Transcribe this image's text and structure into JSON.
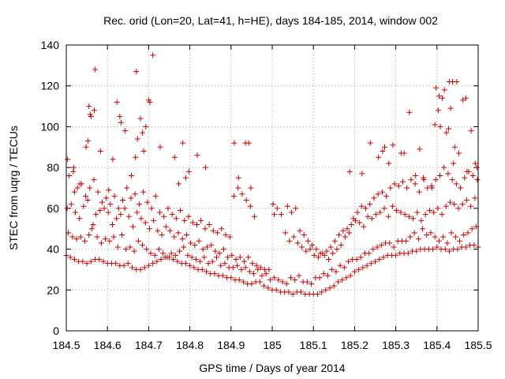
{
  "chart_data": {
    "type": "scatter",
    "title": "Rec. orid (Lon=20, Lat=41, h=HE), days 184-185, 2014, window 002",
    "xlabel": "GPS time / Days of year 2014",
    "ylabel": "STEC from uqrg / TECUs",
    "xlim": [
      184.5,
      185.5
    ],
    "ylim": [
      0,
      140
    ],
    "xticks": [
      "184.5",
      "184.6",
      "184.7",
      "184.8",
      "184.9",
      "185",
      "185.1",
      "185.2",
      "185.3",
      "185.4",
      "185.5"
    ],
    "yticks": [
      "0",
      "20",
      "40",
      "60",
      "80",
      "100",
      "120",
      "140"
    ],
    "grid": true,
    "marker": "+",
    "color": "#cc0000",
    "series": [
      {
        "x": [
          184.5,
          184.51,
          184.52,
          184.53,
          184.54,
          184.55,
          184.56,
          184.57,
          184.58,
          184.59,
          184.6,
          184.61,
          184.62,
          184.63,
          184.64,
          184.65,
          184.66,
          184.67,
          184.68,
          184.69,
          184.7,
          184.71,
          184.72,
          184.73,
          184.74,
          184.75,
          184.76,
          184.77,
          184.78,
          184.79,
          184.8,
          184.81,
          184.82,
          184.83,
          184.84,
          184.85,
          184.86,
          184.87,
          184.88,
          184.89,
          184.9,
          184.91,
          184.92,
          184.93,
          184.94,
          184.95,
          184.96,
          184.97,
          184.98,
          184.99,
          185.0,
          185.01,
          185.02,
          185.03,
          185.04,
          185.05,
          185.06,
          185.07,
          185.08,
          185.09,
          185.1,
          185.11,
          185.12,
          185.13,
          185.14,
          185.15,
          185.16,
          185.17,
          185.18,
          185.19,
          185.2,
          185.21,
          185.22,
          185.23,
          185.24,
          185.25,
          185.26,
          185.27,
          185.28,
          185.29,
          185.3,
          185.31,
          185.32,
          185.33,
          185.34,
          185.35,
          185.36,
          185.37,
          185.38,
          185.39,
          185.4,
          185.41,
          185.42,
          185.43,
          185.44,
          185.45,
          185.46,
          185.47,
          185.48,
          185.49,
          185.5
        ],
        "y": [
          37,
          36,
          35,
          34,
          34,
          33,
          34,
          35,
          35,
          34,
          33,
          33,
          33,
          32,
          32,
          33,
          31,
          30,
          30,
          31,
          32,
          33,
          34,
          35,
          36,
          36,
          35,
          34,
          33,
          33,
          32,
          31,
          30,
          30,
          29,
          28,
          28,
          27,
          27,
          26,
          26,
          25,
          25,
          24,
          23,
          23,
          24,
          24,
          22,
          21,
          20,
          20,
          19,
          19,
          19,
          18,
          19,
          19,
          18,
          18,
          18,
          18,
          19,
          20,
          21,
          22,
          24,
          25,
          26,
          27,
          29,
          30,
          31,
          32,
          33,
          34,
          35,
          36,
          37,
          37,
          37,
          38,
          38,
          38,
          39,
          39,
          40,
          40,
          40,
          40,
          41,
          40,
          40,
          39,
          40,
          40,
          41,
          41,
          42,
          42,
          41
        ]
      },
      {
        "x": [
          184.505,
          184.515,
          184.525,
          184.535,
          184.545,
          184.555,
          184.565,
          184.575,
          184.585,
          184.595,
          184.605,
          184.615,
          184.625,
          184.635,
          184.645,
          184.655,
          184.665,
          184.675,
          184.685,
          184.695,
          184.705,
          184.715,
          184.725,
          184.735,
          184.745,
          184.755,
          184.765,
          184.775,
          184.785,
          184.795,
          184.805,
          184.815,
          184.825,
          184.835,
          184.845,
          184.855,
          184.865,
          184.875,
          184.885,
          184.895,
          184.905,
          184.915,
          184.925,
          184.935,
          184.945,
          184.955,
          184.965,
          184.975,
          184.985,
          184.995,
          185.005,
          185.015,
          185.025,
          185.035,
          185.045,
          185.055,
          185.065,
          185.075,
          185.085,
          185.095,
          185.105,
          185.115,
          185.125,
          185.135,
          185.145,
          185.155,
          185.165,
          185.175,
          185.185,
          185.195,
          185.205,
          185.215,
          185.225,
          185.235,
          185.245,
          185.255,
          185.265,
          185.275,
          185.285,
          185.295,
          185.305,
          185.315,
          185.325,
          185.335,
          185.345,
          185.355,
          185.365,
          185.375,
          185.385,
          185.395,
          185.405,
          185.415,
          185.425,
          185.435,
          185.445,
          185.455,
          185.465,
          185.475,
          185.485,
          185.495
        ],
        "y": [
          48,
          46,
          45,
          46,
          44,
          47,
          52,
          46,
          43,
          45,
          44,
          46,
          41,
          47,
          40,
          41,
          39,
          44,
          42,
          40,
          38,
          37,
          40,
          38,
          36,
          38,
          37,
          39,
          41,
          37,
          36,
          35,
          34,
          36,
          33,
          34,
          36,
          32,
          33,
          31,
          31,
          32,
          30,
          31,
          29,
          28,
          30,
          27,
          28,
          25,
          26,
          25,
          24,
          23,
          26,
          25,
          27,
          24,
          24,
          23,
          26,
          26,
          28,
          27,
          30,
          29,
          32,
          31,
          34,
          35,
          35,
          36,
          38,
          38,
          40,
          41,
          42,
          43,
          43,
          41,
          44,
          44,
          44,
          46,
          48,
          45,
          50,
          47,
          48,
          46,
          44,
          46,
          43,
          48,
          46,
          44,
          47,
          48,
          50,
          51
        ]
      },
      {
        "x": [
          184.502,
          184.512,
          184.522,
          184.532,
          184.542,
          184.552,
          184.562,
          184.572,
          184.582,
          184.592,
          184.602,
          184.612,
          184.622,
          184.632,
          184.642,
          184.652,
          184.662,
          184.672,
          184.682,
          184.692,
          184.702,
          184.712,
          184.722,
          184.732,
          184.742,
          184.752,
          184.762,
          184.772,
          184.782,
          184.792,
          184.802,
          184.812,
          184.822,
          184.832,
          184.842,
          184.852,
          184.862,
          184.872,
          184.882,
          184.892,
          184.902,
          184.912,
          184.922,
          184.932,
          184.942,
          184.952,
          184.962,
          184.972,
          184.982,
          184.992,
          185.002,
          185.012,
          185.022,
          185.032,
          185.042,
          185.052,
          185.062,
          185.072,
          185.082,
          185.092,
          185.102,
          185.112,
          185.122,
          185.132,
          185.142,
          185.152,
          185.162,
          185.172,
          185.182,
          185.192,
          185.202,
          185.212,
          185.222,
          185.232,
          185.242,
          185.252,
          185.262,
          185.272,
          185.282,
          185.292,
          185.302,
          185.312,
          185.322,
          185.332,
          185.342,
          185.352,
          185.362,
          185.372,
          185.382,
          185.392,
          185.402,
          185.412,
          185.422,
          185.432,
          185.442,
          185.452,
          185.462,
          185.472,
          185.482,
          185.492
        ],
        "y": [
          60,
          62,
          58,
          55,
          61,
          64,
          50,
          57,
          59,
          60,
          58,
          52,
          55,
          57,
          60,
          56,
          51,
          58,
          55,
          53,
          50,
          54,
          49,
          47,
          51,
          49,
          46,
          48,
          45,
          47,
          43,
          42,
          44,
          40,
          41,
          42,
          39,
          38,
          40,
          36,
          37,
          35,
          36,
          34,
          36,
          33,
          32,
          31,
          30,
          30,
          62,
          60,
          57,
          48,
          44,
          46,
          43,
          41,
          39,
          40,
          37,
          36,
          38,
          39,
          41,
          44,
          47,
          49,
          50,
          52,
          54,
          53,
          51,
          56,
          55,
          57,
          58,
          60,
          56,
          61,
          59,
          58,
          57,
          56,
          55,
          58,
          54,
          57,
          59,
          58,
          60,
          57,
          61,
          63,
          62,
          60,
          62,
          64,
          61,
          65
        ]
      },
      {
        "x": [
          184.507,
          184.517,
          184.527,
          184.537,
          184.547,
          184.557,
          184.567,
          184.577,
          184.587,
          184.597,
          184.607,
          184.617,
          184.627,
          184.637,
          184.647,
          184.657,
          184.667,
          184.677,
          184.687,
          184.697,
          184.707,
          184.717,
          184.727,
          184.737,
          184.747,
          184.757,
          184.767,
          184.777,
          184.787,
          184.797,
          184.807,
          184.817,
          184.827,
          184.837,
          184.847,
          184.857,
          184.867,
          184.877,
          184.887,
          184.897,
          184.907,
          184.917,
          184.927,
          184.937,
          184.947,
          184.957,
          185.037,
          185.047,
          185.057,
          185.067,
          185.077,
          185.087,
          185.097,
          185.107,
          185.117,
          185.127,
          185.137,
          185.147,
          185.157,
          185.167,
          185.177,
          185.187,
          185.197,
          185.207,
          185.217,
          185.227,
          185.237,
          185.247,
          185.257,
          185.267,
          185.277,
          185.287,
          185.297,
          185.307,
          185.317,
          185.327,
          185.337,
          185.347,
          185.357,
          185.367,
          185.377,
          185.387,
          185.397,
          185.407,
          185.417,
          185.427,
          185.437,
          185.447,
          185.457,
          185.467,
          185.477,
          185.487,
          185.497
        ],
        "y": [
          76,
          78,
          70,
          72,
          66,
          70,
          74,
          68,
          63,
          65,
          62,
          66,
          60,
          64,
          70,
          65,
          67,
          62,
          68,
          63,
          60,
          66,
          58,
          56,
          60,
          57,
          55,
          59,
          54,
          56,
          53,
          52,
          54,
          50,
          52,
          49,
          48,
          50,
          47,
          46,
          66,
          70,
          67,
          64,
          61,
          56,
          61,
          58,
          60,
          49,
          47,
          44,
          42,
          40,
          38,
          37,
          35,
          38,
          40,
          42,
          46,
          48,
          55,
          58,
          61,
          60,
          62,
          65,
          67,
          68,
          66,
          70,
          72,
          71,
          73,
          70,
          74,
          72,
          68,
          75,
          70,
          71,
          74,
          76,
          80,
          77,
          74,
          72,
          70,
          75,
          78,
          76,
          80
        ]
      },
      {
        "x": [
          184.503,
          184.518,
          184.533,
          184.548,
          184.553,
          184.558,
          184.568,
          184.583,
          184.603,
          184.613,
          184.623,
          184.633,
          184.643,
          184.658,
          184.668,
          184.673,
          184.688,
          184.693,
          184.703,
          184.728,
          184.763,
          184.773,
          184.783,
          184.798,
          184.818,
          184.838,
          184.908,
          184.918,
          184.943,
          184.948,
          185.188,
          185.218,
          185.238,
          185.258,
          185.268,
          185.273,
          185.283,
          185.293,
          185.313,
          185.333,
          185.348,
          185.358,
          185.368,
          185.388,
          185.398,
          185.403,
          185.408,
          185.413,
          185.418,
          185.423,
          185.428,
          185.433,
          185.438,
          185.443,
          185.448,
          185.453,
          185.463,
          185.473,
          185.483,
          185.493,
          185.498
        ],
        "y": [
          84,
          80,
          72,
          90,
          93,
          106,
          108,
          88,
          69,
          84,
          112,
          102,
          98,
          76,
          85,
          94,
          88,
          100,
          112,
          90,
          85,
          72,
          92,
          78,
          86,
          80,
          92,
          75,
          92,
          70,
          78,
          77,
          92,
          85,
          88,
          90,
          82,
          91,
          87,
          107,
          76,
          89,
          74,
          70,
          119,
          108,
          100,
          114,
          118,
          97,
          99,
          109,
          122,
          90,
          122,
          87,
          113,
          78,
          98,
          82,
          74
        ]
      },
      {
        "x": [
          184.52,
          184.555,
          184.56,
          184.57,
          184.63,
          184.67,
          184.68,
          184.685,
          184.7,
          184.71,
          184.79,
          184.935,
          185.005,
          185.32,
          185.395,
          185.405,
          185.43,
          185.44,
          185.47
        ],
        "y": [
          68,
          110,
          105,
          128,
          105,
          127,
          104,
          97,
          113,
          135,
          75,
          92,
          57,
          87,
          101,
          115,
          122,
          82,
          114
        ]
      }
    ]
  }
}
